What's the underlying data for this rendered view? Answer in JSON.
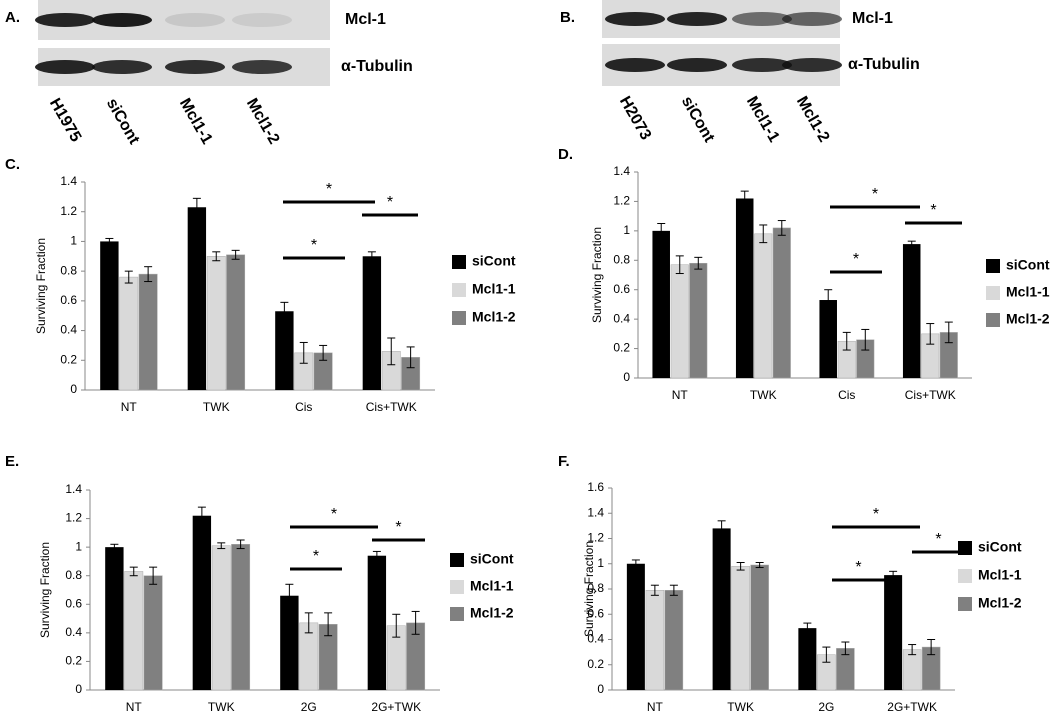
{
  "blots": [
    {
      "label": "A.",
      "bands": [
        "Mcl-1",
        "α-Tubulin"
      ],
      "lanes": [
        "H1975",
        "siCont",
        "Mcl1-1",
        "Mcl1-2"
      ]
    },
    {
      "label": "B.",
      "bands": [
        "Mcl-1",
        "α-Tubulin"
      ],
      "lanes": [
        "H2073",
        "siCont",
        "Mcl1-1",
        "Mcl1-2"
      ]
    }
  ],
  "chart_data": [
    {
      "type": "bar",
      "panel": "C.",
      "ylabel": "Surviving Fraction",
      "categories": [
        "NT",
        "TWK",
        "Cis",
        "Cis+TWK"
      ],
      "series": [
        {
          "name": "siCont",
          "color": "#000000",
          "values": [
            1.0,
            1.23,
            0.53,
            0.9
          ],
          "errors": [
            0.02,
            0.06,
            0.06,
            0.03
          ]
        },
        {
          "name": "Mcl1-1",
          "color": "#d9d9d9",
          "values": [
            0.76,
            0.9,
            0.25,
            0.26
          ],
          "errors": [
            0.04,
            0.03,
            0.07,
            0.09
          ]
        },
        {
          "name": "Mcl1-2",
          "color": "#808080",
          "values": [
            0.78,
            0.91,
            0.25,
            0.22
          ],
          "errors": [
            0.05,
            0.03,
            0.05,
            0.07
          ]
        }
      ],
      "ylim": [
        0,
        1.4
      ],
      "yticks": [
        0,
        0.2,
        0.4,
        0.6,
        0.8,
        1,
        1.2,
        1.4
      ],
      "annotations": [
        "*",
        "*",
        "*"
      ]
    },
    {
      "type": "bar",
      "panel": "D.",
      "ylabel": "Surviving Fraction",
      "categories": [
        "NT",
        "TWK",
        "Cis",
        "Cis+TWK"
      ],
      "series": [
        {
          "name": "siCont",
          "color": "#000000",
          "values": [
            1.0,
            1.22,
            0.53,
            0.91
          ],
          "errors": [
            0.05,
            0.05,
            0.07,
            0.02
          ]
        },
        {
          "name": "Mcl1-1",
          "color": "#d9d9d9",
          "values": [
            0.77,
            0.98,
            0.25,
            0.3
          ],
          "errors": [
            0.06,
            0.06,
            0.06,
            0.07
          ]
        },
        {
          "name": "Mcl1-2",
          "color": "#808080",
          "values": [
            0.78,
            1.02,
            0.26,
            0.31
          ],
          "errors": [
            0.04,
            0.05,
            0.07,
            0.07
          ]
        }
      ],
      "ylim": [
        0,
        1.4
      ],
      "yticks": [
        0,
        0.2,
        0.4,
        0.6,
        0.8,
        1,
        1.2,
        1.4
      ],
      "annotations": [
        "*",
        "*",
        "*"
      ]
    },
    {
      "type": "bar",
      "panel": "E.",
      "ylabel": "Surviving Fraction",
      "categories": [
        "NT",
        "TWK",
        "2G",
        "2G+TWK"
      ],
      "series": [
        {
          "name": "siCont",
          "color": "#000000",
          "values": [
            1.0,
            1.22,
            0.66,
            0.94
          ],
          "errors": [
            0.02,
            0.06,
            0.08,
            0.03
          ]
        },
        {
          "name": "Mcl1-1",
          "color": "#d9d9d9",
          "values": [
            0.83,
            1.01,
            0.47,
            0.45
          ],
          "errors": [
            0.03,
            0.02,
            0.07,
            0.08
          ]
        },
        {
          "name": "Mcl1-2",
          "color": "#808080",
          "values": [
            0.8,
            1.02,
            0.46,
            0.47
          ],
          "errors": [
            0.06,
            0.03,
            0.08,
            0.08
          ]
        }
      ],
      "ylim": [
        0,
        1.4
      ],
      "yticks": [
        0,
        0.2,
        0.4,
        0.6,
        0.8,
        1,
        1.2,
        1.4
      ],
      "annotations": [
        "*",
        "*",
        "*"
      ]
    },
    {
      "type": "bar",
      "panel": "F.",
      "ylabel": "Surviving Fraction",
      "categories": [
        "NT",
        "TWK",
        "2G",
        "2G+TWK"
      ],
      "series": [
        {
          "name": "siCont",
          "color": "#000000",
          "values": [
            1.0,
            1.28,
            0.49,
            0.91
          ],
          "errors": [
            0.03,
            0.06,
            0.04,
            0.03
          ]
        },
        {
          "name": "Mcl1-1",
          "color": "#d9d9d9",
          "values": [
            0.79,
            0.98,
            0.28,
            0.32
          ],
          "errors": [
            0.04,
            0.03,
            0.06,
            0.04
          ]
        },
        {
          "name": "Mcl1-2",
          "color": "#808080",
          "values": [
            0.79,
            0.99,
            0.33,
            0.34
          ],
          "errors": [
            0.04,
            0.02,
            0.05,
            0.06
          ]
        }
      ],
      "ylim": [
        0,
        1.6
      ],
      "yticks": [
        0,
        0.2,
        0.4,
        0.6,
        0.8,
        1,
        1.2,
        1.4,
        1.6
      ],
      "annotations": [
        "*",
        "*",
        "*"
      ]
    }
  ]
}
